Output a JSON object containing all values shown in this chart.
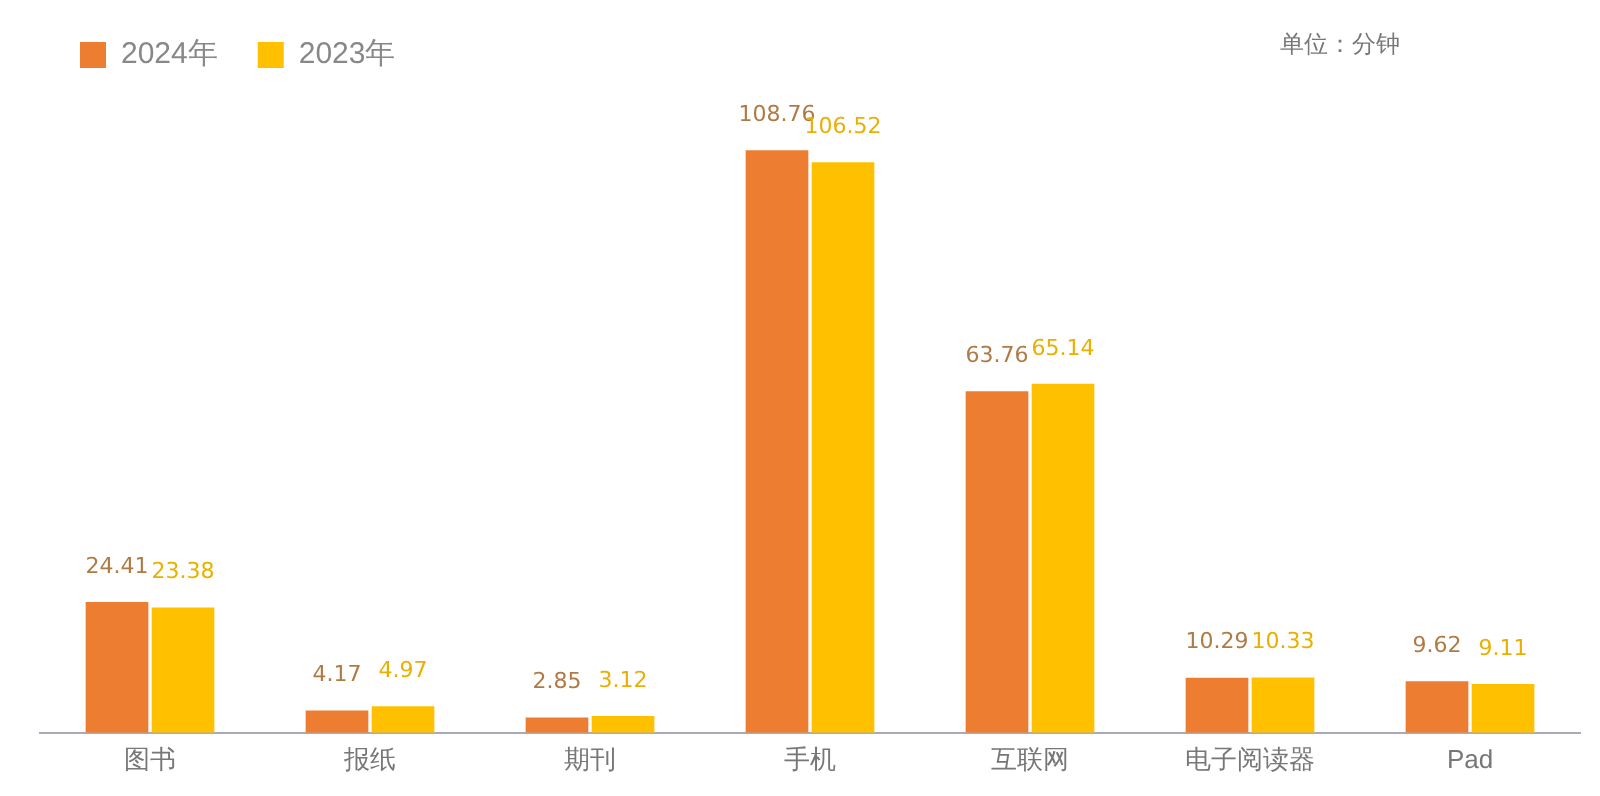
{
  "chart_data": {
    "type": "bar",
    "categories": [
      "图书",
      "报纸",
      "期刊",
      "手机",
      "互联网",
      "电子阅读器",
      "Pad"
    ],
    "series": [
      {
        "name": "2024年",
        "color": "#ed7d31",
        "values": [
          24.41,
          4.17,
          2.85,
          108.76,
          63.76,
          10.29,
          9.62
        ]
      },
      {
        "name": "2023年",
        "color": "#ffc000",
        "values": [
          23.38,
          4.97,
          3.12,
          106.52,
          65.14,
          10.33,
          9.11
        ]
      }
    ],
    "data_labels": true,
    "legend": "top left",
    "grid": false,
    "annotations": [
      "单位：分钟"
    ]
  }
}
